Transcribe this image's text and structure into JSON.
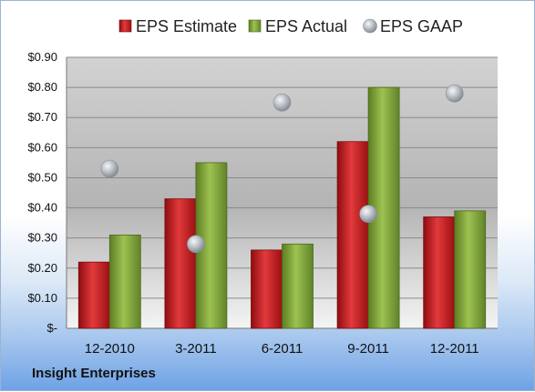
{
  "chart_data": {
    "type": "bar",
    "categories": [
      "12-2010",
      "3-2011",
      "6-2011",
      "9-2011",
      "12-2011"
    ],
    "series": [
      {
        "name": "EPS Estimate",
        "type": "bar",
        "color": "#c8151b",
        "values": [
          0.22,
          0.43,
          0.26,
          0.62,
          0.37
        ]
      },
      {
        "name": "EPS Actual",
        "type": "bar",
        "color": "#7ea23a",
        "values": [
          0.31,
          0.55,
          0.28,
          0.8,
          0.39
        ]
      },
      {
        "name": "EPS GAAP",
        "type": "scatter",
        "color": "#b9bec6",
        "values": [
          0.53,
          0.28,
          0.75,
          0.38,
          0.78
        ]
      }
    ],
    "ylim": [
      0,
      0.9
    ],
    "yticks": [
      0,
      0.1,
      0.2,
      0.3,
      0.4,
      0.5,
      0.6,
      0.7,
      0.8,
      0.9
    ],
    "ytick_labels": [
      "$-",
      "$0.10",
      "$0.20",
      "$0.30",
      "$0.40",
      "$0.50",
      "$0.60",
      "$0.70",
      "$0.80",
      "$0.90"
    ],
    "grid": true,
    "legend": "top"
  },
  "footer": {
    "company": "Insight Enterprises"
  }
}
